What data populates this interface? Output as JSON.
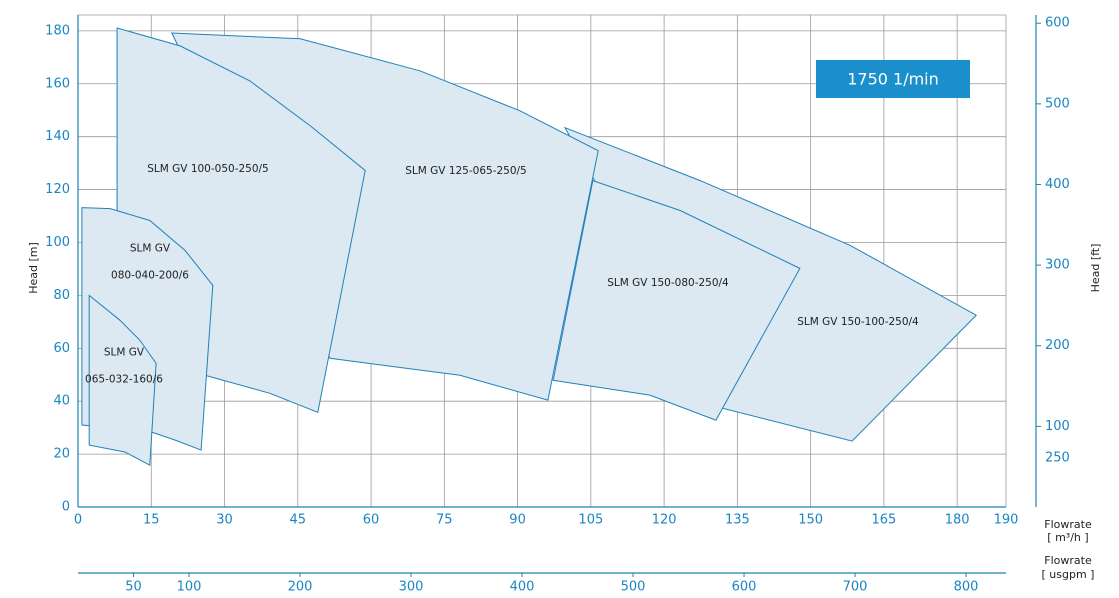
{
  "chart_data": {
    "type": "region",
    "y_label": "Head [m]",
    "y2_label": "Head [ft]",
    "x_label_lines": [
      "Flowrate",
      "[ m³/h ]"
    ],
    "x2_label_lines": [
      "Flowrate",
      "[ usgpm ]"
    ],
    "annotation": "1750 1/min",
    "stray_label": "250",
    "xlim": [
      0,
      190
    ],
    "xticks": [
      0,
      15,
      30,
      45,
      60,
      75,
      90,
      105,
      120,
      135,
      150,
      165,
      180,
      190
    ],
    "ylim": [
      0,
      186
    ],
    "yticks": [
      0,
      20,
      40,
      60,
      80,
      100,
      120,
      140,
      160,
      180
    ],
    "y2lim": [
      0,
      610.2
    ],
    "y2ticks": [
      100,
      200,
      300,
      400,
      500,
      600
    ],
    "x2lim": [
      0,
      836
    ],
    "x2ticks": [
      50,
      100,
      200,
      300,
      400,
      500,
      600,
      700,
      800
    ],
    "grid": true,
    "fill_color": "#dce8f2",
    "line_color": "#1f82b8",
    "regions": [
      {
        "name_lines": [
          "SLM GV 150-100-250/4"
        ],
        "x": [
          99.7,
          127.4,
          158.1,
          183.9,
          158.5,
          131.9
        ],
        "y": [
          143.4,
          123.4,
          98.9,
          72.5,
          24.9,
          37.4
        ]
      },
      {
        "name_lines": [
          "SLM GV 150-080-250/4"
        ],
        "x": [
          105.4,
          123.3,
          147.8,
          130.6,
          117.1,
          97.3
        ],
        "y": [
          123.4,
          112.1,
          90.2,
          32.8,
          42.3,
          47.9
        ]
      },
      {
        "name_lines": [
          "SLM GV 125-065-250/5"
        ],
        "x": [
          19.2,
          45.5,
          70.0,
          90.5,
          106.5,
          96.2,
          78.2,
          51.6
        ],
        "y": [
          179.2,
          177.0,
          164.9,
          149.8,
          134.7,
          40.4,
          49.8,
          56.2
        ]
      },
      {
        "name_lines": [
          "SLM GV 100-050-250/5"
        ],
        "x": [
          8.0,
          20.9,
          35.2,
          47.5,
          58.8,
          49.1,
          39.3,
          26.0,
          8.0
        ],
        "y": [
          181.1,
          174.3,
          161.1,
          144.2,
          127.2,
          35.8,
          43.0,
          49.8,
          51.7
        ]
      },
      {
        "name_lines": [
          "SLM GV",
          "080-040-200/6"
        ],
        "x": [
          0.8,
          6.6,
          14.7,
          21.9,
          27.6,
          25.2,
          19.9,
          15.1,
          0.8
        ],
        "y": [
          113.2,
          112.8,
          108.3,
          97.0,
          83.8,
          21.5,
          25.3,
          28.3,
          31.0
        ]
      },
      {
        "name_lines": [
          "SLM GV",
          "065-032-160/6"
        ],
        "x": [
          2.3,
          8.6,
          12.7,
          16.0,
          14.7,
          9.6,
          2.3
        ],
        "y": [
          80.0,
          70.6,
          63.0,
          54.3,
          15.8,
          20.8,
          23.4
        ]
      }
    ]
  }
}
